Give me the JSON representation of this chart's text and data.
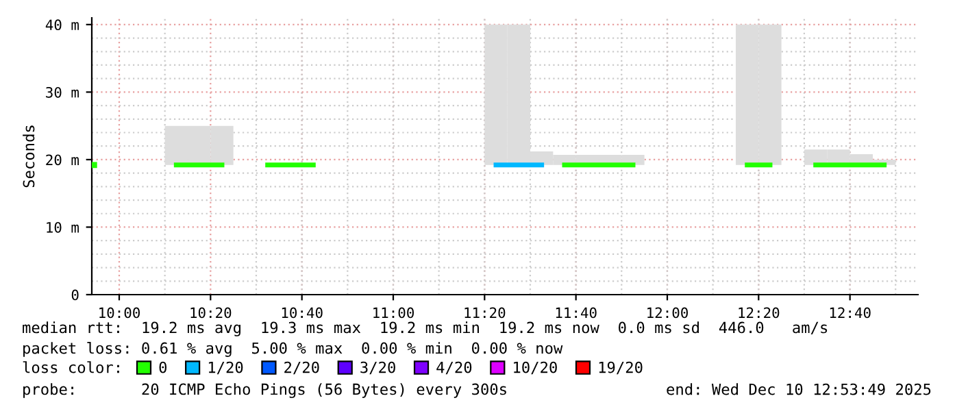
{
  "chart_data": {
    "type": "bar",
    "ylabel": "Seconds",
    "legend_title": "loss color:",
    "x": [
      10.2083,
      10.2917,
      10.375,
      10.5417,
      10.625,
      10.7083,
      11.375,
      11.4583,
      11.5417,
      11.625,
      11.7083,
      11.7917,
      11.875,
      12.2917,
      12.375,
      12.5417,
      12.625,
      12.7083,
      12.7917
    ],
    "xlim": [
      9.9,
      12.915
    ],
    "xticks": [
      {
        "value": 10,
        "label": "10:00"
      },
      {
        "value": 10.3333,
        "label": "10:20"
      },
      {
        "value": 10.6667,
        "label": "10:40"
      },
      {
        "value": 11,
        "label": "11:00"
      },
      {
        "value": 11.3333,
        "label": "11:20"
      },
      {
        "value": 11.6667,
        "label": "11:40"
      },
      {
        "value": 12,
        "label": "12:00"
      },
      {
        "value": 12.3333,
        "label": "12:20"
      },
      {
        "value": 12.6667,
        "label": "12:40"
      }
    ],
    "ylim": [
      0,
      41
    ],
    "yticks": [
      0,
      {
        "value": 10,
        "label": "10 m"
      },
      {
        "value": 20,
        "label": "20 m"
      },
      {
        "value": 30,
        "label": "30 m"
      },
      {
        "value": 40,
        "label": "40 m"
      }
    ],
    "grid": true,
    "legend": "bottom",
    "series": [
      {
        "type": "scatter",
        "color": "#22ff00",
        "marker": "square",
        "x": [
          9.9083
        ],
        "values": [
          19.2
        ]
      },
      {
        "color": "#dddddd",
        "base": [
          19.2,
          19.2,
          19.2,
          null,
          null,
          null,
          19.2,
          19.2,
          19.2,
          19.2,
          19.2,
          19.2,
          19.2,
          19.2,
          19.2,
          19.2,
          19.2,
          19.2,
          19.2
        ],
        "values": [
          5.8,
          5.8,
          5.8,
          null,
          null,
          null,
          20.8,
          20.8,
          2.0,
          1.5,
          1.5,
          1.5,
          1.5,
          20.8,
          20.8,
          2.3,
          2.3,
          1.6,
          0.8
        ]
      },
      {
        "type": "line",
        "name": "0",
        "color": "#22ff00",
        "values": [
          19.2,
          19.2,
          19.2,
          19.2,
          19.2,
          19.2,
          null,
          null,
          null,
          19.2,
          19.2,
          19.2,
          19.2,
          19.2,
          19.2,
          19.2,
          19.2,
          19.2,
          19.2
        ]
      },
      {
        "type": "line",
        "name": "1/20",
        "color": "#00b8ff",
        "values": [
          null,
          null,
          null,
          null,
          null,
          null,
          19.2,
          19.2,
          19.2,
          null,
          null,
          null,
          null,
          null,
          null,
          null,
          null,
          null,
          null
        ]
      },
      {
        "type": "line",
        "name": "2/20",
        "color": "#0059ff",
        "values": [
          null,
          null,
          null,
          null,
          null,
          null,
          null,
          null,
          null,
          null,
          null,
          null,
          null,
          null,
          null,
          null,
          null,
          null,
          null
        ]
      },
      {
        "type": "line",
        "name": "3/20",
        "color": "#5e00ff",
        "values": [
          null,
          null,
          null,
          null,
          null,
          null,
          null,
          null,
          null,
          null,
          null,
          null,
          null,
          null,
          null,
          null,
          null,
          null,
          null
        ]
      },
      {
        "type": "line",
        "name": "4/20",
        "color": "#7e00ff",
        "values": [
          null,
          null,
          null,
          null,
          null,
          null,
          null,
          null,
          null,
          null,
          null,
          null,
          null,
          null,
          null,
          null,
          null,
          null,
          null
        ]
      },
      {
        "type": "line",
        "name": "10/20",
        "color": "#dd00ff",
        "values": [
          null,
          null,
          null,
          null,
          null,
          null,
          null,
          null,
          null,
          null,
          null,
          null,
          null,
          null,
          null,
          null,
          null,
          null,
          null
        ]
      },
      {
        "type": "line",
        "name": "19/20",
        "color": "#ff0000",
        "values": [
          null,
          null,
          null,
          null,
          null,
          null,
          null,
          null,
          null,
          null,
          null,
          null,
          null,
          null,
          null,
          null,
          null,
          null,
          null
        ]
      }
    ],
    "annotations": [
      "median rtt:  19.2 ms avg  19.3 ms max  19.2 ms min  19.2 ms now  0.0 ms sd  446.0   am/s",
      "packet loss: 0.61 % avg  5.00 % max  0.00 % min  0.00 % now",
      "probe:       20 ICMP Echo Pings (56 Bytes) every 300s",
      "end: Wed Dec 10 12:53:49 2025"
    ]
  }
}
